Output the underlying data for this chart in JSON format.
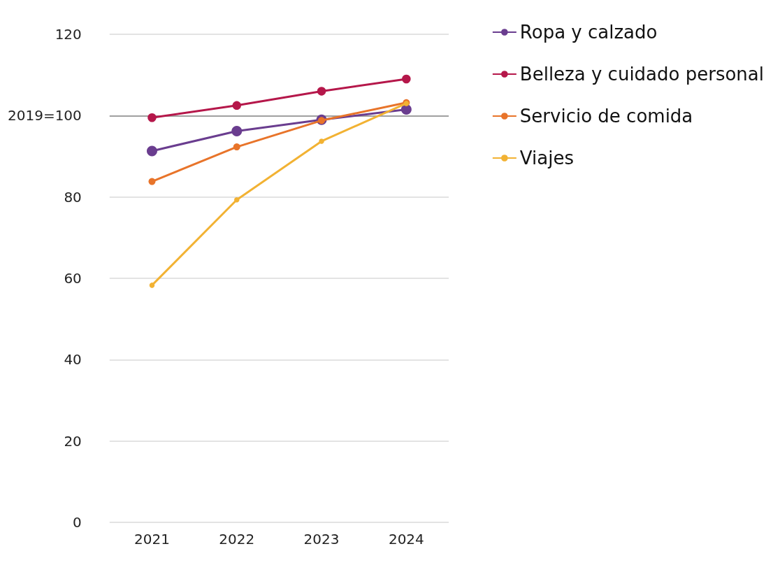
{
  "chart_data": {
    "type": "line",
    "categories": [
      "2021",
      "2022",
      "2023",
      "2024"
    ],
    "series": [
      {
        "name": "Ropa y calzado",
        "color": "#6a3d8f",
        "values": [
          91.3,
          96.2,
          99,
          101.5
        ]
      },
      {
        "name": "Belleza y cuidado personal",
        "color": "#b5174a",
        "values": [
          99.5,
          102.5,
          106,
          109
        ]
      },
      {
        "name": "Servicio de comida",
        "color": "#e8742a",
        "values": [
          83.8,
          92.3,
          98.8,
          103.2
        ]
      },
      {
        "name": "Viajes",
        "color": "#f2b233",
        "values": [
          58.3,
          79.3,
          93.7,
          103
        ]
      }
    ],
    "ylim": [
      0,
      120
    ],
    "yticks": [
      0,
      20,
      40,
      60,
      80,
      {
        "value": 100,
        "label": "2019=100"
      },
      120
    ],
    "ref_lines": [
      {
        "axis": "y",
        "value": 100,
        "color": "#a0a0a0"
      }
    ],
    "grid": "y",
    "legend": "right",
    "marker": "circle",
    "line_style": "solid"
  }
}
